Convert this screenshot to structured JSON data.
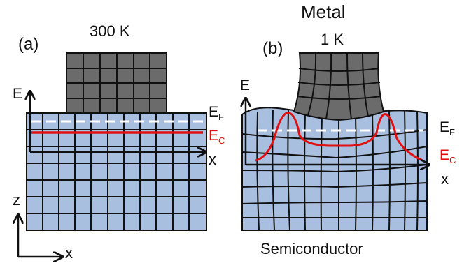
{
  "panel_a": {
    "label": "(a)",
    "temperature": "300 K",
    "axis_e": "E",
    "axis_x": "x",
    "ef_main": "E",
    "ef_sub": "F",
    "ec_main": "E",
    "ec_sub": "C"
  },
  "panel_b": {
    "label": "(b)",
    "temperature": "1 K",
    "metal": "Metal",
    "semiconductor": "Semiconductor",
    "axis_e": "E",
    "axis_x": "x",
    "ef_main": "E",
    "ef_sub": "F",
    "ec_main": "E",
    "ec_sub": "C"
  },
  "coords": {
    "z": "z",
    "x": "x"
  },
  "colors": {
    "metal": "#6b6b6b",
    "semiconductor": "#a9bfe0",
    "grid": "#111111",
    "fermi": "#ffffff",
    "conduction": "#e01010",
    "axes": "#111111"
  }
}
